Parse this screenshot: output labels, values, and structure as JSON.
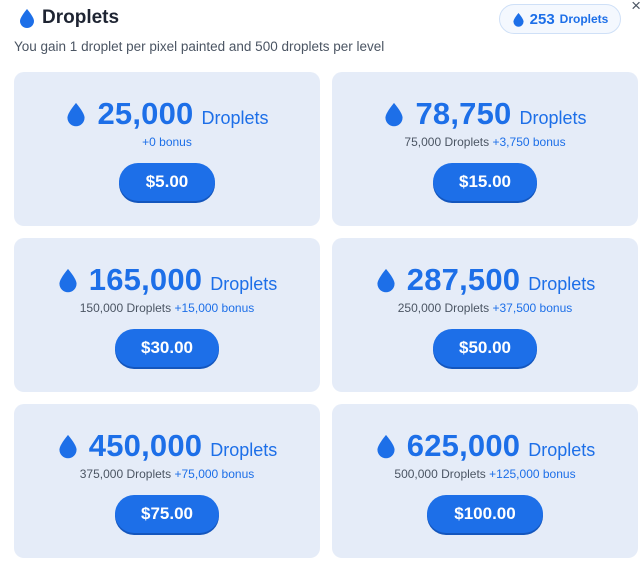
{
  "header": {
    "title": "Droplets",
    "subtitle": "You gain 1 droplet per pixel painted and 500 droplets per level",
    "close_glyph": "×",
    "balance": {
      "amount": "253",
      "unit": "Droplets"
    }
  },
  "colors": {
    "accent": "#1d6fe8",
    "card_bg": "#e5ecf8"
  },
  "icons": {
    "droplet": "droplet-icon",
    "close": "close-icon"
  },
  "packages": [
    {
      "amount": "25,000",
      "unit": "Droplets",
      "base": "",
      "bonus": "+0 bonus",
      "price": "$5.00"
    },
    {
      "amount": "78,750",
      "unit": "Droplets",
      "base": "75,000 Droplets",
      "bonus": "+3,750 bonus",
      "price": "$15.00"
    },
    {
      "amount": "165,000",
      "unit": "Droplets",
      "base": "150,000 Droplets",
      "bonus": "+15,000 bonus",
      "price": "$30.00"
    },
    {
      "amount": "287,500",
      "unit": "Droplets",
      "base": "250,000 Droplets",
      "bonus": "+37,500 bonus",
      "price": "$50.00"
    },
    {
      "amount": "450,000",
      "unit": "Droplets",
      "base": "375,000 Droplets",
      "bonus": "+75,000 bonus",
      "price": "$75.00"
    },
    {
      "amount": "625,000",
      "unit": "Droplets",
      "base": "500,000 Droplets",
      "bonus": "+125,000 bonus",
      "price": "$100.00"
    }
  ]
}
